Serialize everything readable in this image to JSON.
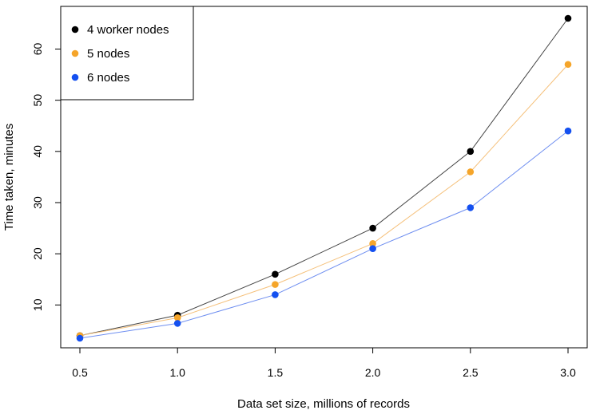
{
  "chart_data": {
    "type": "line",
    "title": "",
    "xlabel": "Data set size, millions of records",
    "ylabel": "Time taken, minutes",
    "x": [
      0.5,
      1.0,
      1.5,
      2.0,
      2.5,
      3.0
    ],
    "x_tick_labels": [
      "0.5",
      "1.0",
      "1.5",
      "2.0",
      "2.5",
      "3.0"
    ],
    "y_ticks": [
      10,
      20,
      30,
      40,
      50,
      60
    ],
    "y_tick_labels": [
      "10",
      "20",
      "30",
      "40",
      "50",
      "60"
    ],
    "xlim": [
      0.5,
      3.0
    ],
    "ylim": [
      3.5,
      66
    ],
    "grid": false,
    "legend_position": "top-left",
    "series": [
      {
        "name": "4 worker nodes",
        "color": "#000000",
        "line_color": "#444444",
        "values": [
          4,
          8,
          16,
          25,
          40,
          66
        ]
      },
      {
        "name": "5 nodes",
        "color": "#F5A52A",
        "line_color": "#F5C07A",
        "values": [
          4,
          7.5,
          14,
          22,
          36,
          57
        ]
      },
      {
        "name": "6 nodes",
        "color": "#1450F0",
        "line_color": "#6E8EF0",
        "values": [
          3.5,
          6.4,
          12,
          21,
          29,
          44
        ]
      }
    ]
  }
}
